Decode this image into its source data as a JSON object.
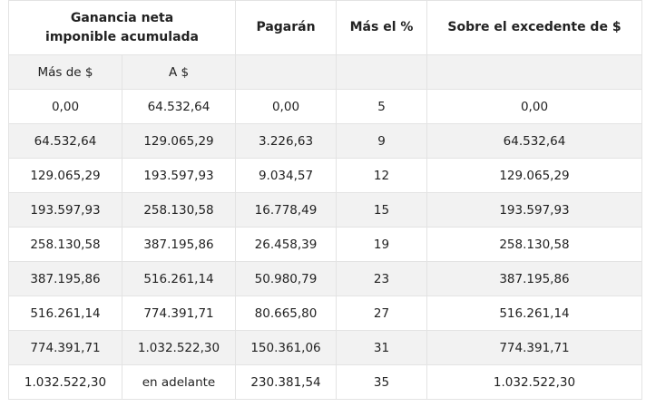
{
  "header": {
    "group_line1": "Ganancia neta",
    "group_line2": "imponible acumulada",
    "pagaran": "Pagarán",
    "mas_el_pct": "Más el %",
    "sobre_excedente": "Sobre el excedente de $",
    "sub_desde": "Más de $",
    "sub_hasta": "A $"
  },
  "rows": [
    {
      "desde": "0,00",
      "hasta": "64.532,64",
      "pagaran": "0,00",
      "pct": "5",
      "excedente": "0,00"
    },
    {
      "desde": "64.532,64",
      "hasta": "129.065,29",
      "pagaran": "3.226,63",
      "pct": "9",
      "excedente": "64.532,64"
    },
    {
      "desde": "129.065,29",
      "hasta": "193.597,93",
      "pagaran": "9.034,57",
      "pct": "12",
      "excedente": "129.065,29"
    },
    {
      "desde": "193.597,93",
      "hasta": "258.130,58",
      "pagaran": "16.778,49",
      "pct": "15",
      "excedente": "193.597,93"
    },
    {
      "desde": "258.130,58",
      "hasta": "387.195,86",
      "pagaran": "26.458,39",
      "pct": "19",
      "excedente": "258.130,58"
    },
    {
      "desde": "387.195,86",
      "hasta": "516.261,14",
      "pagaran": "50.980,79",
      "pct": "23",
      "excedente": "387.195,86"
    },
    {
      "desde": "516.261,14",
      "hasta": "774.391,71",
      "pagaran": "80.665,80",
      "pct": "27",
      "excedente": "516.261,14"
    },
    {
      "desde": "774.391,71",
      "hasta": "1.032.522,30",
      "pagaran": "150.361,06",
      "pct": "31",
      "excedente": "774.391,71"
    },
    {
      "desde": "1.032.522,30",
      "hasta": "en adelante",
      "pagaran": "230.381,54",
      "pct": "35",
      "excedente": "1.032.522,30"
    }
  ]
}
